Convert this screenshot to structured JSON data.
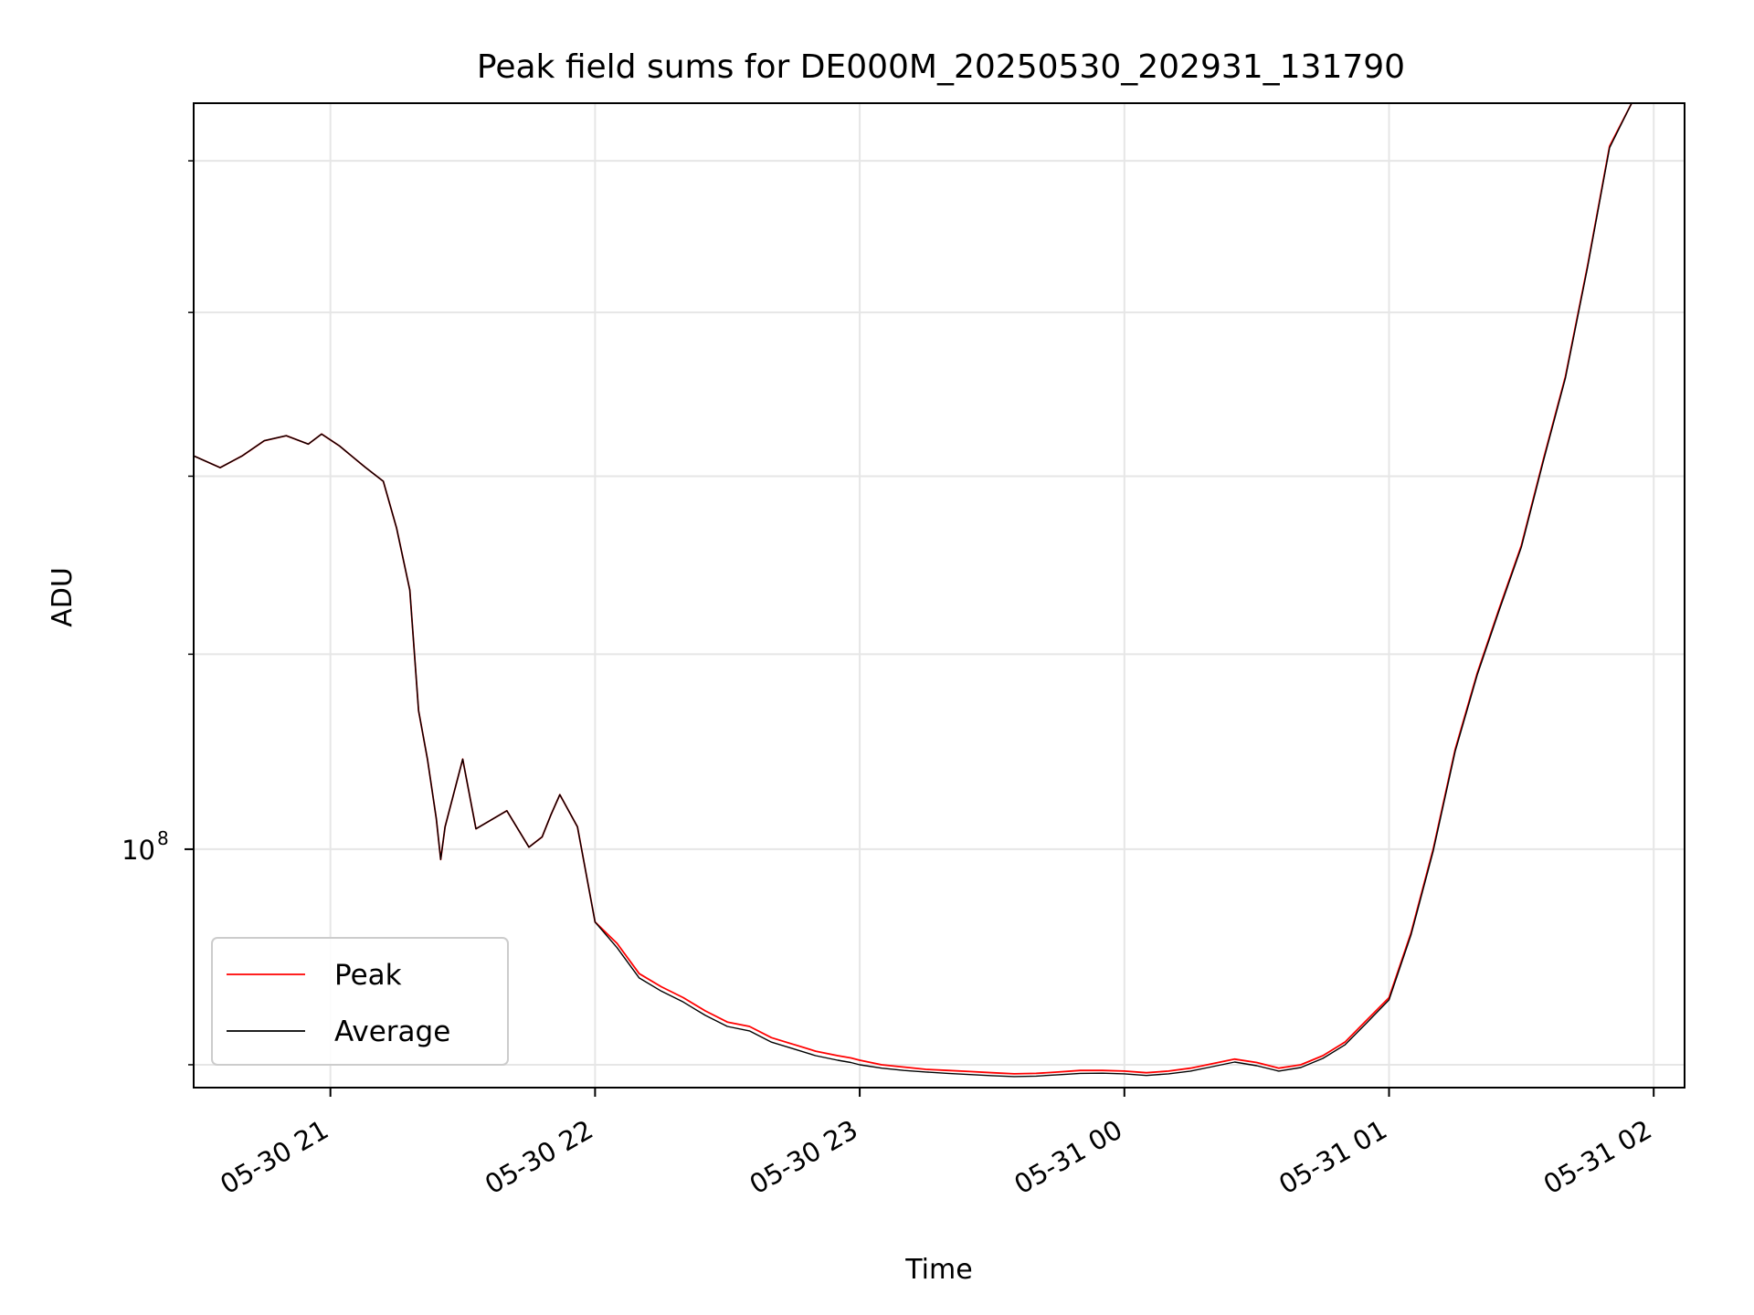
{
  "chart_data": {
    "type": "line",
    "title": "Peak field sums for DE000M_20250530_202931_131790",
    "xlabel": "Time",
    "ylabel": "ADU",
    "x_scale": "time",
    "y_scale": "log",
    "xlim": [
      "05-30 20:29",
      "05-31 02:07"
    ],
    "ylim": [
      89000000.0,
      144000000.0
    ],
    "x_ticks": [
      {
        "t": "05-30 21:00",
        "label": "05-30 21"
      },
      {
        "t": "05-30 22:00",
        "label": "05-30 22"
      },
      {
        "t": "05-30 23:00",
        "label": "05-30 23"
      },
      {
        "t": "05-31 00:00",
        "label": "05-31 00"
      },
      {
        "t": "05-31 01:00",
        "label": "05-31 01"
      },
      {
        "t": "05-31 02:00",
        "label": "05-31 02"
      }
    ],
    "y_major_ticks": [
      {
        "value": 100000000,
        "label_base": "10",
        "label_exp": "8"
      }
    ],
    "y_minor_ticks": [
      90000000.0,
      110000000.0,
      120000000.0,
      130000000.0,
      140000000.0
    ],
    "grid": true,
    "legend_position": "lower-left",
    "series": [
      {
        "name": "Peak",
        "color": "#ff0000",
        "points": [
          [
            "05-30 20:29",
            121200000.0
          ],
          [
            "05-30 20:35",
            120500000.0
          ],
          [
            "05-30 20:40",
            121200000.0
          ],
          [
            "05-30 20:45",
            122100000.0
          ],
          [
            "05-30 20:50",
            122400000.0
          ],
          [
            "05-30 20:55",
            121900000.0
          ],
          [
            "05-30 20:58",
            122500000.0
          ],
          [
            "05-30 21:02",
            121800000.0
          ],
          [
            "05-30 21:08",
            120500000.0
          ],
          [
            "05-30 21:12",
            119700000.0
          ],
          [
            "05-30 21:15",
            117000000.0
          ],
          [
            "05-30 21:18",
            113500000.0
          ],
          [
            "05-30 21:20",
            107000000.0
          ],
          [
            "05-30 21:22",
            104500000.0
          ],
          [
            "05-30 21:24",
            101500000.0
          ],
          [
            "05-30 21:25",
            99500000.0
          ],
          [
            "05-30 21:26",
            101100000.0
          ],
          [
            "05-30 21:30",
            104500000.0
          ],
          [
            "05-30 21:33",
            101000000.0
          ],
          [
            "05-30 21:40",
            101900000.0
          ],
          [
            "05-30 21:45",
            100100000.0
          ],
          [
            "05-30 21:48",
            100600000.0
          ],
          [
            "05-30 21:50",
            101700000.0
          ],
          [
            "05-30 21:52",
            102700000.0
          ],
          [
            "05-30 21:56",
            101100000.0
          ],
          [
            "05-30 22:00",
            96500000.0
          ],
          [
            "05-30 22:05",
            95500000.0
          ],
          [
            "05-30 22:10",
            94100000.0
          ],
          [
            "05-30 22:15",
            93500000.0
          ],
          [
            "05-30 22:20",
            93000000.0
          ],
          [
            "05-30 22:25",
            92400000.0
          ],
          [
            "05-30 22:30",
            91900000.0
          ],
          [
            "05-30 22:35",
            91700000.0
          ],
          [
            "05-30 22:40",
            91200000.0
          ],
          [
            "05-30 22:45",
            90900000.0
          ],
          [
            "05-30 22:50",
            90600000.0
          ],
          [
            "05-30 22:55",
            90400000.0
          ],
          [
            "05-30 22:58",
            90300000.0
          ],
          [
            "05-30 23:00",
            90200000.0
          ],
          [
            "05-30 23:05",
            90000000.0
          ],
          [
            "05-30 23:10",
            89900000.0
          ],
          [
            "05-30 23:15",
            89800000.0
          ],
          [
            "05-30 23:20",
            89750000.0
          ],
          [
            "05-30 23:25",
            89700000.0
          ],
          [
            "05-30 23:30",
            89650000.0
          ],
          [
            "05-30 23:35",
            89600000.0
          ],
          [
            "05-30 23:40",
            89620000.0
          ],
          [
            "05-30 23:45",
            89680000.0
          ],
          [
            "05-30 23:50",
            89750000.0
          ],
          [
            "05-30 23:55",
            89750000.0
          ],
          [
            "05-31 00:00",
            89720000.0
          ],
          [
            "05-31 00:05",
            89650000.0
          ],
          [
            "05-31 00:10",
            89720000.0
          ],
          [
            "05-31 00:15",
            89850000.0
          ],
          [
            "05-31 00:20",
            90050000.0
          ],
          [
            "05-31 00:25",
            90250000.0
          ],
          [
            "05-31 00:30",
            90100000.0
          ],
          [
            "05-31 00:35",
            89850000.0
          ],
          [
            "05-31 00:40",
            90000000.0
          ],
          [
            "05-31 00:45",
            90400000.0
          ],
          [
            "05-31 00:50",
            91000000.0
          ],
          [
            "05-31 00:55",
            92000000.0
          ],
          [
            "05-31 01:00",
            93000000.0
          ],
          [
            "05-31 01:05",
            96000000.0
          ],
          [
            "05-31 01:10",
            100000000.0
          ],
          [
            "05-31 01:15",
            105000000.0
          ],
          [
            "05-31 01:20",
            109000000.0
          ],
          [
            "05-31 01:25",
            112500000.0
          ],
          [
            "05-31 01:30",
            116000000.0
          ],
          [
            "05-31 01:35",
            121000000.0
          ],
          [
            "05-31 01:40",
            126000000.0
          ],
          [
            "05-31 01:45",
            133000000.0
          ],
          [
            "05-31 01:50",
            141000000.0
          ],
          [
            "05-31 01:55",
            144000000.0
          ],
          [
            "05-31 02:07",
            144000000.0
          ]
        ]
      },
      {
        "name": "Average",
        "color": "#000000",
        "points": [
          [
            "05-30 20:29",
            121200000.0
          ],
          [
            "05-30 20:35",
            120500000.0
          ],
          [
            "05-30 20:40",
            121200000.0
          ],
          [
            "05-30 20:45",
            122100000.0
          ],
          [
            "05-30 20:50",
            122400000.0
          ],
          [
            "05-30 20:55",
            121900000.0
          ],
          [
            "05-30 20:58",
            122500000.0
          ],
          [
            "05-30 21:02",
            121800000.0
          ],
          [
            "05-30 21:08",
            120500000.0
          ],
          [
            "05-30 21:12",
            119700000.0
          ],
          [
            "05-30 21:15",
            117000000.0
          ],
          [
            "05-30 21:18",
            113500000.0
          ],
          [
            "05-30 21:20",
            107000000.0
          ],
          [
            "05-30 21:22",
            104500000.0
          ],
          [
            "05-30 21:24",
            101500000.0
          ],
          [
            "05-30 21:25",
            99500000.0
          ],
          [
            "05-30 21:26",
            101100000.0
          ],
          [
            "05-30 21:30",
            104500000.0
          ],
          [
            "05-30 21:33",
            101000000.0
          ],
          [
            "05-30 21:40",
            101900000.0
          ],
          [
            "05-30 21:45",
            100100000.0
          ],
          [
            "05-30 21:48",
            100600000.0
          ],
          [
            "05-30 21:50",
            101700000.0
          ],
          [
            "05-30 21:52",
            102700000.0
          ],
          [
            "05-30 21:56",
            101100000.0
          ],
          [
            "05-30 22:00",
            96500000.0
          ],
          [
            "05-30 22:05",
            95300000.0
          ],
          [
            "05-30 22:10",
            93900000.0
          ],
          [
            "05-30 22:15",
            93300000.0
          ],
          [
            "05-30 22:20",
            92800000.0
          ],
          [
            "05-30 22:25",
            92200000.0
          ],
          [
            "05-30 22:30",
            91700000.0
          ],
          [
            "05-30 22:35",
            91500000.0
          ],
          [
            "05-30 22:40",
            91000000.0
          ],
          [
            "05-30 22:45",
            90700000.0
          ],
          [
            "05-30 22:50",
            90400000.0
          ],
          [
            "05-30 22:55",
            90200000.0
          ],
          [
            "05-30 22:58",
            90100000.0
          ],
          [
            "05-30 23:00",
            90000000.0
          ],
          [
            "05-30 23:05",
            89850000.0
          ],
          [
            "05-30 23:10",
            89750000.0
          ],
          [
            "05-30 23:15",
            89680000.0
          ],
          [
            "05-30 23:20",
            89620000.0
          ],
          [
            "05-30 23:25",
            89570000.0
          ],
          [
            "05-30 23:30",
            89520000.0
          ],
          [
            "05-30 23:35",
            89480000.0
          ],
          [
            "05-30 23:40",
            89500000.0
          ],
          [
            "05-30 23:45",
            89560000.0
          ],
          [
            "05-30 23:50",
            89620000.0
          ],
          [
            "05-30 23:55",
            89630000.0
          ],
          [
            "05-31 00:00",
            89600000.0
          ],
          [
            "05-31 00:05",
            89530000.0
          ],
          [
            "05-31 00:10",
            89600000.0
          ],
          [
            "05-31 00:15",
            89720000.0
          ],
          [
            "05-31 00:20",
            89920000.0
          ],
          [
            "05-31 00:25",
            90120000.0
          ],
          [
            "05-31 00:30",
            89960000.0
          ],
          [
            "05-31 00:35",
            89720000.0
          ],
          [
            "05-31 00:40",
            89880000.0
          ],
          [
            "05-31 00:45",
            90280000.0
          ],
          [
            "05-31 00:50",
            90880000.0
          ],
          [
            "05-31 00:55",
            91880000.0
          ],
          [
            "05-31 01:00",
            92900000.0
          ],
          [
            "05-31 01:05",
            95900000.0
          ],
          [
            "05-31 01:10",
            99900000.0
          ],
          [
            "05-31 01:15",
            104900000.0
          ],
          [
            "05-31 01:20",
            108900000.0
          ],
          [
            "05-31 01:25",
            112400000.0
          ],
          [
            "05-31 01:30",
            115900000.0
          ],
          [
            "05-31 01:35",
            120900000.0
          ],
          [
            "05-31 01:40",
            125900000.0
          ],
          [
            "05-31 01:45",
            132900000.0
          ],
          [
            "05-31 01:50",
            140900000.0
          ],
          [
            "05-31 01:55",
            144000000.0
          ],
          [
            "05-31 02:07",
            144000000.0
          ]
        ]
      }
    ]
  }
}
